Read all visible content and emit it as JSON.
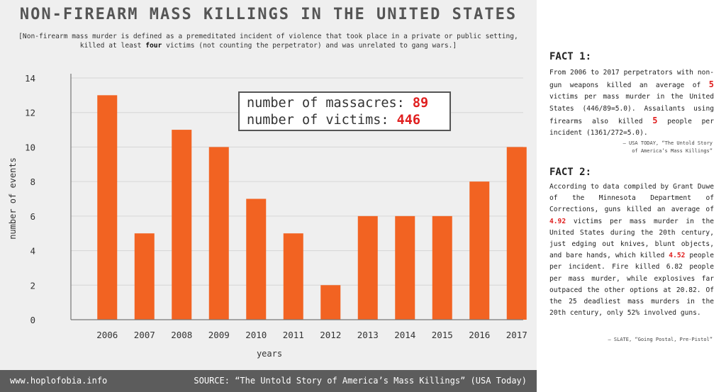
{
  "header": {
    "title": "NON-FIREARM MASS KILLINGS IN THE UNITED STATES",
    "subtitle_pre": "[Non-firearm mass murder is defined as a premeditated incident of violence that took place in a private or public setting, killed at least ",
    "subtitle_bold": "four",
    "subtitle_post": " victims (not counting the perpetrator) and was unrelated to gang wars.]"
  },
  "stats": {
    "massacres_label": "number of massacres: ",
    "massacres_value": "89",
    "victims_label": "number of victims: ",
    "victims_value": "446"
  },
  "chart_data": {
    "type": "bar",
    "categories": [
      "2006",
      "2007",
      "2008",
      "2009",
      "2010",
      "2011",
      "2012",
      "2013",
      "2014",
      "2015",
      "2016",
      "2017"
    ],
    "values": [
      13,
      5,
      11,
      10,
      7,
      5,
      2,
      6,
      6,
      6,
      8,
      10
    ],
    "xlabel": "years",
    "ylabel": "number of events",
    "ylim": [
      0,
      14
    ],
    "yticks": [
      0,
      2,
      4,
      6,
      8,
      10,
      12,
      14
    ],
    "grid": "horizontal",
    "colors": {
      "bar": "#f26322"
    }
  },
  "footer": {
    "site": "www.hoplofobia.info",
    "source": "SOURCE: “The Untold Story of America’s Mass Killings” (USA Today)"
  },
  "facts": {
    "fact1": {
      "title": "FACT 1:",
      "t1": "From 2006 to 2017 perpetrators with non-gun weapons killed an average of ",
      "h1": "5",
      "t2": " victims per mass murder in the United States (446/89=5.0). Assailants using firearms also killed ",
      "h2": "5",
      "t3": " people per incident (1361/272=5.0).",
      "cite_line1": "– USA TODAY, “The Untold Story",
      "cite_line2": "of America’s Mass Killings”"
    },
    "fact2": {
      "title": "FACT 2:",
      "t1": "According to data compiled by Grant Duwe of the Minnesota Department of Corrections, guns killed an average of ",
      "h1": "4.92",
      "t2": " victims per mass murder in the United States during the 20th century, just edging out knives, blunt objects, and bare hands, which killed ",
      "h2": "4.52",
      "t3": " people per incident. Fire killed 6.82 people per mass murder, while explosives far outpaced the other options at 20.82. Of the 25 deadliest mass murders in the 20th century, only 52% involved guns.",
      "cite": "– SLATE, “Going Postal, Pre-Pistol”"
    }
  }
}
